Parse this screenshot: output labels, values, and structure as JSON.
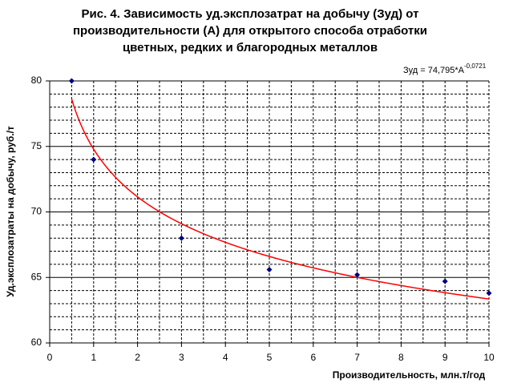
{
  "chart_data": {
    "type": "scatter",
    "title": [
      "Рис. 4. Зависимость уд.эксплозатрат на добычу (Зуд) от",
      "производительности (А) для открытого способа отработки",
      "цветных, редких и благородных  металлов"
    ],
    "x_label": "Производительность, млн.т/год",
    "y_label": "Уд.эксплозатраты на добычу, руб./т",
    "x": [
      0.5,
      1,
      3,
      5,
      7,
      9,
      10
    ],
    "values": [
      80,
      74,
      68,
      65.6,
      65.2,
      64.7,
      63.8
    ],
    "color": "#000080",
    "xlim": [
      0,
      10
    ],
    "xticks": [
      0,
      1,
      2,
      3,
      4,
      5,
      6,
      7,
      8,
      9,
      10
    ],
    "xminorticks": [
      0.5,
      1.5,
      2.5,
      3.5,
      4.5,
      5.5,
      6.5,
      7.5,
      8.5,
      9.5
    ],
    "ylim": [
      60,
      80
    ],
    "yticks": [
      60,
      65,
      70,
      75,
      80
    ],
    "yminorticks": [
      61,
      62,
      63,
      64,
      66,
      67,
      68,
      69,
      71,
      72,
      73,
      74,
      76,
      77,
      78,
      79
    ],
    "grid": true,
    "trendline": {
      "type": "power",
      "color": "#ff0000",
      "label_prefix": "Зуд = ",
      "coefficient": {
        "value": 74.795,
        "label": "74,795"
      },
      "variable": "*A",
      "exponent": {
        "value": -0.0721,
        "label": "-0,0721"
      }
    }
  }
}
